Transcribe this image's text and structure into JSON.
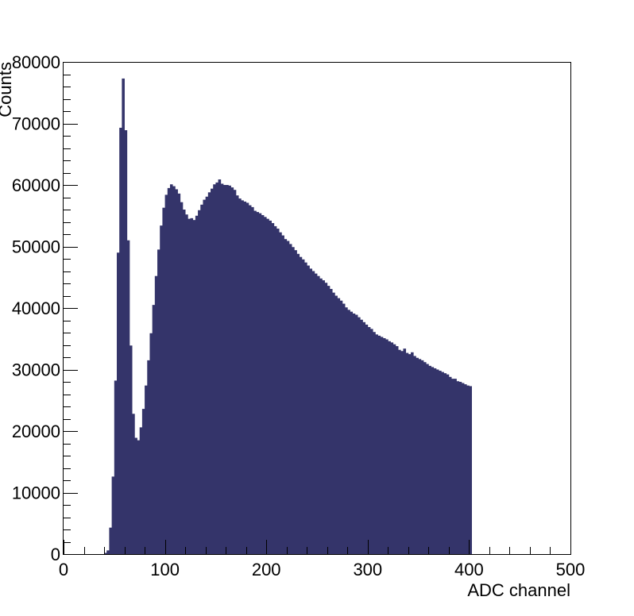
{
  "chart_data": {
    "type": "bar",
    "title": "",
    "xlabel": "ADC channel",
    "ylabel": "Counts",
    "xlim": [
      0,
      500
    ],
    "ylim": [
      0,
      80000
    ],
    "bin_width": 2.5,
    "bin_start": 40,
    "fill_color": "#34346a",
    "xticks": [
      0,
      100,
      200,
      300,
      400,
      500
    ],
    "yticks": [
      0,
      10000,
      20000,
      30000,
      40000,
      50000,
      60000,
      70000,
      80000
    ],
    "xtick_labels": [
      "0",
      "100",
      "200",
      "300",
      "400",
      "500"
    ],
    "ytick_labels": [
      "0",
      "10000",
      "20000",
      "30000",
      "40000",
      "50000",
      "60000",
      "70000",
      "80000"
    ],
    "values": [
      200,
      600,
      4300,
      12600,
      28200,
      49000,
      69300,
      77300,
      68900,
      51000,
      33900,
      22800,
      18900,
      18500,
      20600,
      23600,
      27400,
      31500,
      35900,
      40500,
      45200,
      49500,
      53400,
      56300,
      58400,
      59500,
      60100,
      59800,
      59300,
      58600,
      57200,
      56000,
      55200,
      54500,
      54600,
      54300,
      55000,
      55900,
      56800,
      57600,
      58100,
      58800,
      59400,
      60100,
      60400,
      60900,
      60200,
      60000,
      60000,
      59900,
      59600,
      59200,
      58300,
      57800,
      57500,
      57300,
      57100,
      56700,
      56400,
      55800,
      55600,
      55400,
      55100,
      54800,
      54500,
      54200,
      53800,
      53300,
      52900,
      52300,
      51800,
      51200,
      50900,
      50400,
      49900,
      49400,
      48800,
      48300,
      47900,
      47400,
      46900,
      46400,
      46000,
      45600,
      45200,
      44800,
      44500,
      44100,
      43600,
      43100,
      42500,
      42000,
      41600,
      41200,
      40700,
      40100,
      39700,
      39400,
      39100,
      38900,
      38500,
      38100,
      37700,
      37300,
      36900,
      36600,
      36100,
      35700,
      35500,
      35300,
      35100,
      34900,
      34600,
      34400,
      34100,
      33800,
      33200,
      33000,
      33400,
      32700,
      32500,
      32800,
      32200,
      31900,
      31700,
      31500,
      31200,
      30900,
      30600,
      30400,
      30200,
      30000,
      29800,
      29600,
      29400,
      29200,
      28800,
      28500,
      28500,
      28100,
      28000,
      27800,
      27600,
      27400,
      27300
    ]
  }
}
